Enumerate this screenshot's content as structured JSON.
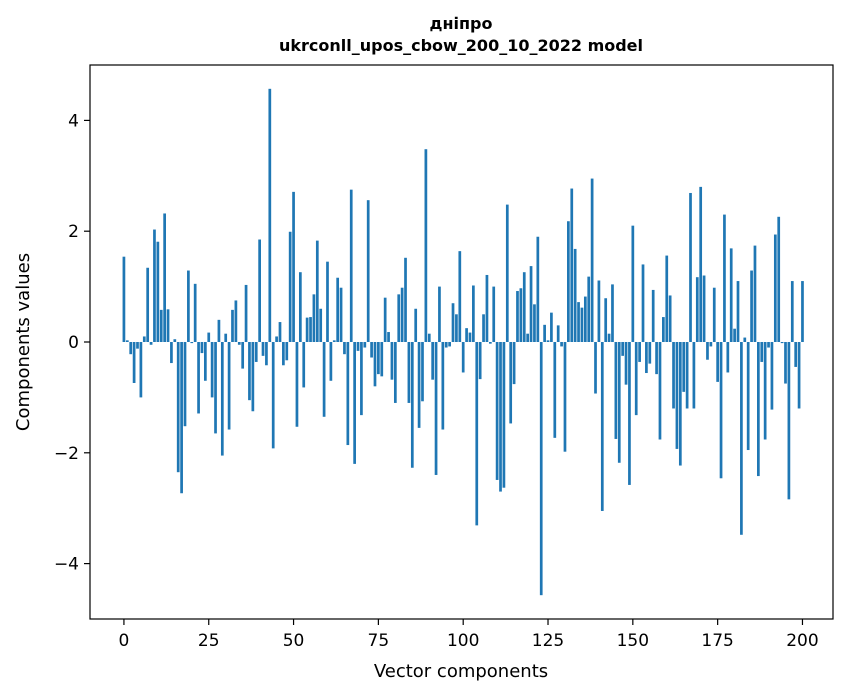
{
  "chart_data": {
    "type": "bar",
    "title": "дніпро",
    "subtitle": "ukrconll_upos_cbow_200_10_2022 model",
    "xlabel": "Vector components",
    "ylabel": "Components values",
    "xlim": [
      -10,
      209
    ],
    "ylim": [
      -5.0,
      5.0
    ],
    "x_ticks": [
      0,
      25,
      50,
      75,
      100,
      125,
      150,
      175,
      200
    ],
    "y_ticks": [
      -4,
      -2,
      0,
      2,
      4
    ],
    "bar_color": "#1f77b4",
    "grid": false,
    "values": [
      1.54,
      0.03,
      -0.22,
      -0.74,
      -0.12,
      -1.0,
      0.1,
      1.34,
      -0.05,
      2.03,
      1.81,
      0.58,
      2.32,
      0.59,
      -0.38,
      0.05,
      -2.35,
      -2.73,
      -1.52,
      1.29,
      -0.02,
      1.05,
      -1.29,
      -0.2,
      -0.7,
      0.17,
      -1.0,
      -1.65,
      0.4,
      -2.05,
      0.15,
      -1.58,
      0.58,
      0.75,
      -0.05,
      -0.48,
      1.03,
      -1.05,
      -1.25,
      -0.36,
      1.85,
      -0.25,
      -0.42,
      4.57,
      -1.92,
      0.1,
      0.36,
      -0.42,
      -0.33,
      1.99,
      2.71,
      -1.53,
      1.26,
      -0.82,
      0.44,
      0.45,
      0.86,
      1.83,
      0.6,
      -1.35,
      1.45,
      -0.7,
      0.03,
      1.16,
      0.98,
      -0.22,
      -1.86,
      2.75,
      -2.2,
      -0.16,
      -1.32,
      -0.1,
      2.56,
      -0.28,
      -0.8,
      -0.58,
      -0.62,
      0.8,
      0.18,
      -0.68,
      -1.1,
      0.86,
      0.98,
      1.52,
      -1.1,
      -2.27,
      0.6,
      -1.55,
      -1.07,
      3.48,
      0.15,
      -0.68,
      -2.4,
      1.0,
      -1.58,
      -0.1,
      -0.08,
      0.7,
      0.5,
      1.64,
      -0.55,
      0.25,
      0.17,
      1.02,
      -3.31,
      -0.67,
      0.5,
      1.21,
      -0.03,
      1.0,
      -2.49,
      -2.7,
      -2.63,
      2.48,
      -1.47,
      -0.76,
      0.92,
      0.97,
      1.26,
      0.15,
      1.37,
      0.68,
      1.9,
      -4.57,
      0.31,
      0.03,
      0.53,
      -1.73,
      0.3,
      -0.08,
      -1.98,
      2.18,
      2.77,
      1.68,
      0.72,
      0.62,
      0.82,
      1.18,
      2.95,
      -0.93,
      1.11,
      -3.05,
      0.79,
      0.15,
      1.04,
      -1.75,
      -2.18,
      -0.25,
      -0.77,
      -2.58,
      2.1,
      -1.32,
      -0.36,
      1.4,
      -0.56,
      -0.39,
      0.94,
      -0.58,
      -1.76,
      0.45,
      1.56,
      0.84,
      -1.2,
      -1.93,
      -2.23,
      -0.9,
      -1.2,
      2.69,
      -1.2,
      1.17,
      2.8,
      1.2,
      -0.32,
      -0.08,
      0.98,
      -0.72,
      -2.46,
      2.3,
      -0.55,
      1.69,
      0.24,
      1.1,
      -3.48,
      0.08,
      -1.95,
      1.29,
      1.74,
      -2.42,
      -0.36,
      -1.76,
      -0.1,
      -1.22,
      1.94,
      2.26,
      -0.02,
      -0.75,
      -2.84,
      1.1,
      -0.45,
      -1.2,
      1.1
    ]
  }
}
